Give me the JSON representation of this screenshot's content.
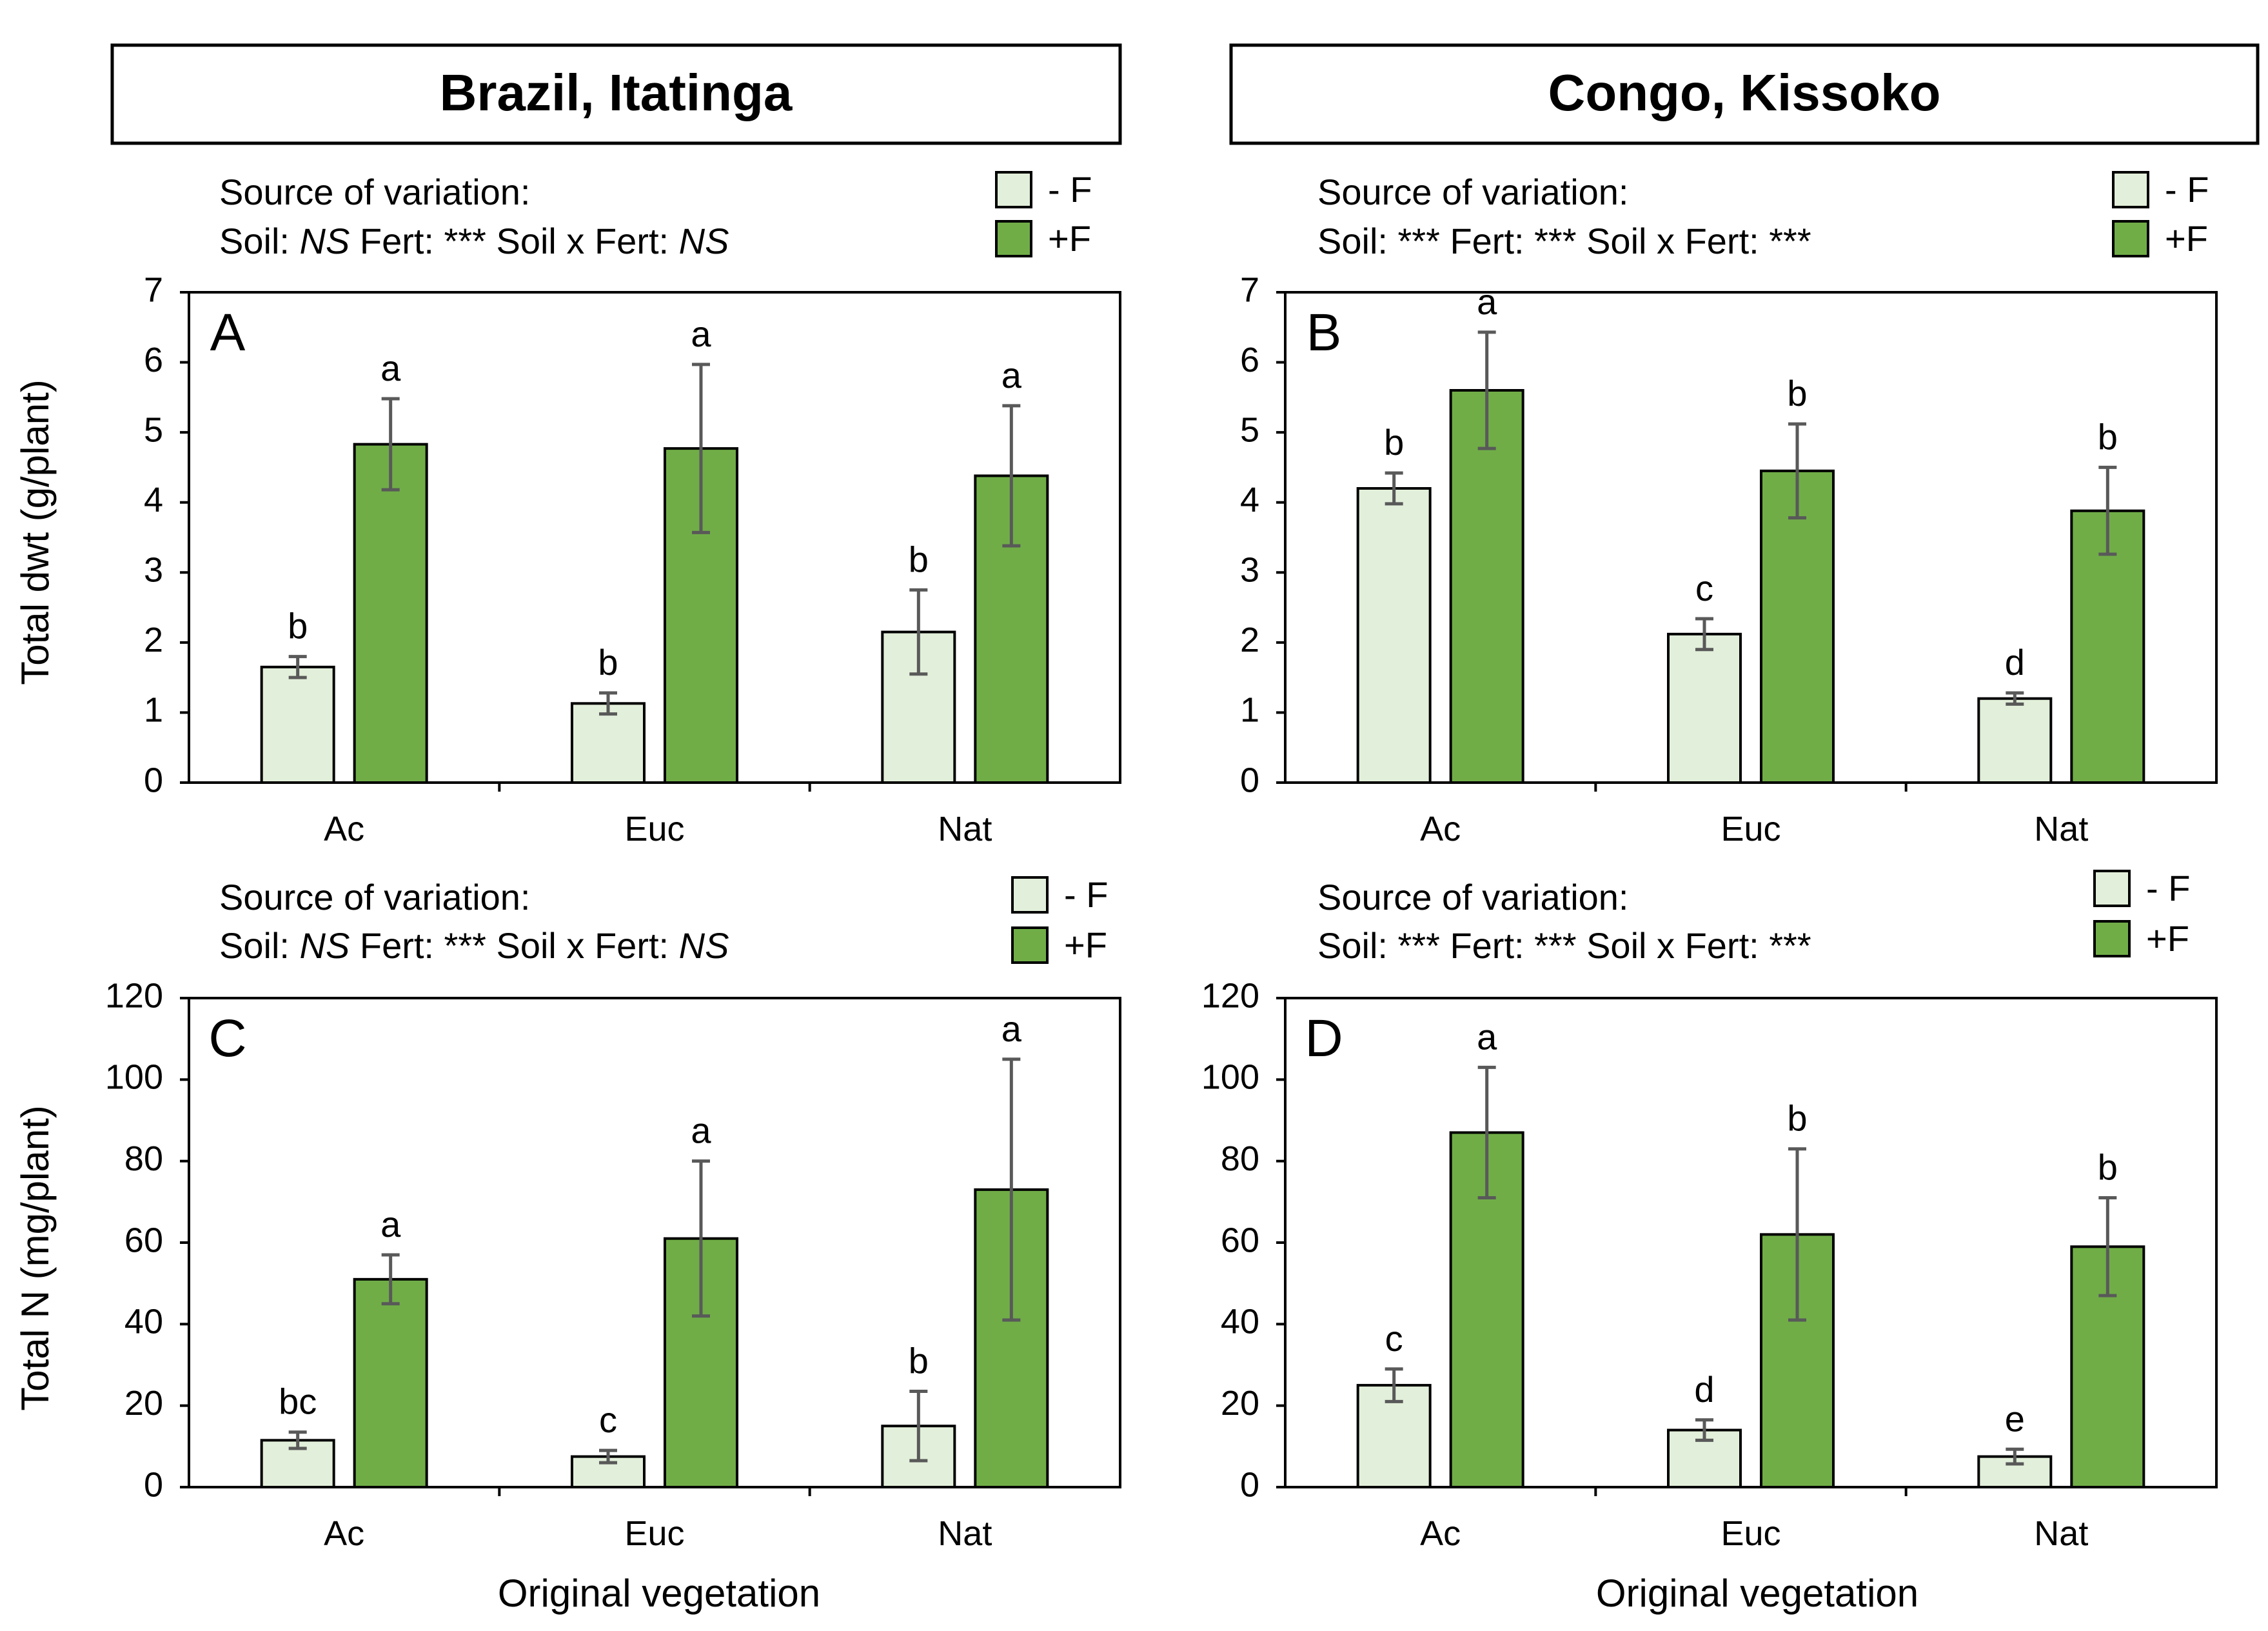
{
  "titles": {
    "left": "Brazil, Itatinga",
    "right": "Congo, Kissoko"
  },
  "x_axis_label": "Original vegetation",
  "legend": {
    "minus": "- F",
    "plus": "+F"
  },
  "colors": {
    "minus_fill": "#e2efda",
    "plus_fill": "#70ad47",
    "bar_stroke": "#000000",
    "error_bar": "#595959"
  },
  "source_heading": "Source of variation:",
  "chart_data": [
    {
      "id": "A",
      "panel_label": "A",
      "type": "bar",
      "ylabel": "Total dwt (g/plant)",
      "ylim": [
        0,
        7
      ],
      "yticks": [
        "0",
        "1",
        "2",
        "3",
        "4",
        "5",
        "6",
        "7"
      ],
      "categories": [
        "Ac",
        "Euc",
        "Nat"
      ],
      "stats": {
        "soil": "NS",
        "fert": "***",
        "interaction": "NS"
      },
      "series": [
        {
          "name": "- F",
          "values": [
            1.65,
            1.13,
            2.15
          ],
          "errors": [
            0.15,
            0.15,
            0.6
          ],
          "letters": [
            "b",
            "b",
            "b"
          ]
        },
        {
          "name": "+F",
          "values": [
            4.83,
            4.77,
            4.38
          ],
          "errors": [
            0.65,
            1.2,
            1.0
          ],
          "letters": [
            "a",
            "a",
            "a"
          ]
        }
      ]
    },
    {
      "id": "B",
      "panel_label": "B",
      "type": "bar",
      "ylabel": "",
      "ylim": [
        0,
        7
      ],
      "yticks": [
        "0",
        "1",
        "2",
        "3",
        "4",
        "5",
        "6",
        "7"
      ],
      "categories": [
        "Ac",
        "Euc",
        "Nat"
      ],
      "stats": {
        "soil": "***",
        "fert": "***",
        "interaction": "***"
      },
      "series": [
        {
          "name": "- F",
          "values": [
            4.2,
            2.12,
            1.2
          ],
          "errors": [
            0.22,
            0.22,
            0.08
          ],
          "letters": [
            "b",
            "c",
            "d"
          ]
        },
        {
          "name": "+F",
          "values": [
            5.6,
            4.45,
            3.88
          ],
          "errors": [
            0.83,
            0.67,
            0.62
          ],
          "letters": [
            "a",
            "b",
            "b"
          ]
        }
      ]
    },
    {
      "id": "C",
      "panel_label": "C",
      "type": "bar",
      "ylabel": "Total N (mg/plant)",
      "ylim": [
        0,
        120
      ],
      "yticks": [
        "0",
        "20",
        "40",
        "60",
        "80",
        "100",
        "120"
      ],
      "categories": [
        "Ac",
        "Euc",
        "Nat"
      ],
      "stats": {
        "soil": "NS",
        "fert": "***",
        "interaction": "NS"
      },
      "series": [
        {
          "name": "- F",
          "values": [
            11.5,
            7.5,
            15
          ],
          "errors": [
            2,
            1.5,
            8.5
          ],
          "letters": [
            "bc",
            "c",
            "b"
          ]
        },
        {
          "name": "+F",
          "values": [
            51,
            61,
            73
          ],
          "errors": [
            6,
            19,
            32
          ],
          "letters": [
            "a",
            "a",
            "a"
          ]
        }
      ]
    },
    {
      "id": "D",
      "panel_label": "D",
      "type": "bar",
      "ylabel": "",
      "ylim": [
        0,
        120
      ],
      "yticks": [
        "0",
        "20",
        "40",
        "60",
        "80",
        "100",
        "120"
      ],
      "categories": [
        "Ac",
        "Euc",
        "Nat"
      ],
      "stats": {
        "soil": "***",
        "fert": "***",
        "interaction": "***"
      },
      "series": [
        {
          "name": "- F",
          "values": [
            25,
            14,
            7.5
          ],
          "errors": [
            4,
            2.5,
            1.8
          ],
          "letters": [
            "c",
            "d",
            "e"
          ]
        },
        {
          "name": "+F",
          "values": [
            87,
            62,
            59
          ],
          "errors": [
            16,
            21,
            12
          ],
          "letters": [
            "a",
            "b",
            "b"
          ]
        }
      ]
    }
  ]
}
